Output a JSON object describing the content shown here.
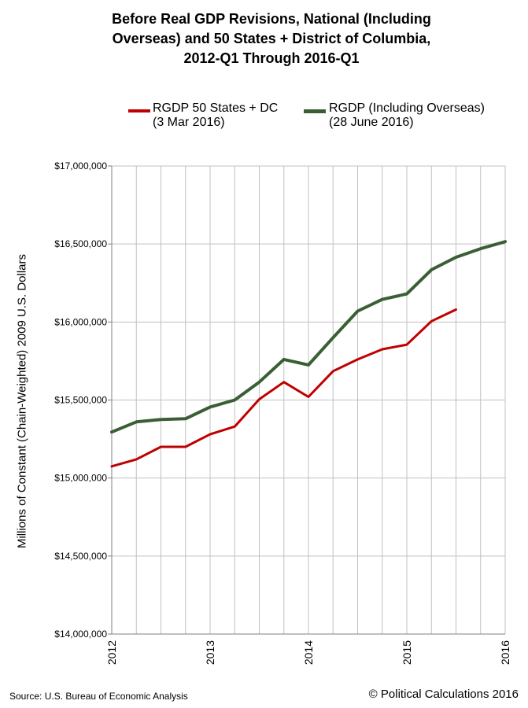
{
  "chart_data": {
    "type": "line",
    "title_lines": [
      "Before Real GDP Revisions, National (Including",
      "Overseas) and 50 States + District of Columbia,",
      "2012-Q1 Through 2016-Q1"
    ],
    "ylabel": "Millions of Constant (Chain-Weighted) 2009 U.S. Dollars",
    "xlabel": "",
    "ylim": [
      14000000,
      17000000
    ],
    "yticks": [
      14000000,
      14500000,
      15000000,
      15500000,
      16000000,
      16500000,
      17000000
    ],
    "ytick_labels": [
      "$14,000,000",
      "$14,500,000",
      "$15,000,000",
      "$15,500,000",
      "$16,000,000",
      "$16,500,000",
      "$17,000,000"
    ],
    "xlim": [
      2012,
      2016
    ],
    "xticks": [
      2012,
      2013,
      2014,
      2015,
      2016
    ],
    "xtick_labels": [
      "2012",
      "2013",
      "2014",
      "2015",
      "2016"
    ],
    "grid": true,
    "legend_position": "top",
    "x": [
      2012.0,
      2012.25,
      2012.5,
      2012.75,
      2013.0,
      2013.25,
      2013.5,
      2013.75,
      2014.0,
      2014.25,
      2014.5,
      2014.75,
      2015.0,
      2015.25,
      2015.5,
      2015.75,
      2016.0
    ],
    "series": [
      {
        "name_lines": [
          "RGDP 50 States + DC",
          "(3 Mar 2016)"
        ],
        "color": "#c00000",
        "values": [
          15075000,
          15120000,
          15200000,
          15200000,
          15280000,
          15330000,
          15505000,
          15615000,
          15520000,
          15685000,
          15760000,
          15825000,
          15855000,
          16005000,
          16080000,
          null,
          null
        ]
      },
      {
        "name_lines": [
          "RGDP (Including Overseas)",
          "(28 June 2016)"
        ],
        "color": "#3a5f35",
        "values": [
          15295000,
          15360000,
          15375000,
          15380000,
          15455000,
          15500000,
          15615000,
          15760000,
          15725000,
          15900000,
          16070000,
          16145000,
          16180000,
          16335000,
          16415000,
          16470000,
          16515000
        ]
      }
    ]
  },
  "footer": {
    "source": "Source: U.S. Bureau of Economic Analysis",
    "copyright": "© Political Calculations 2016"
  }
}
